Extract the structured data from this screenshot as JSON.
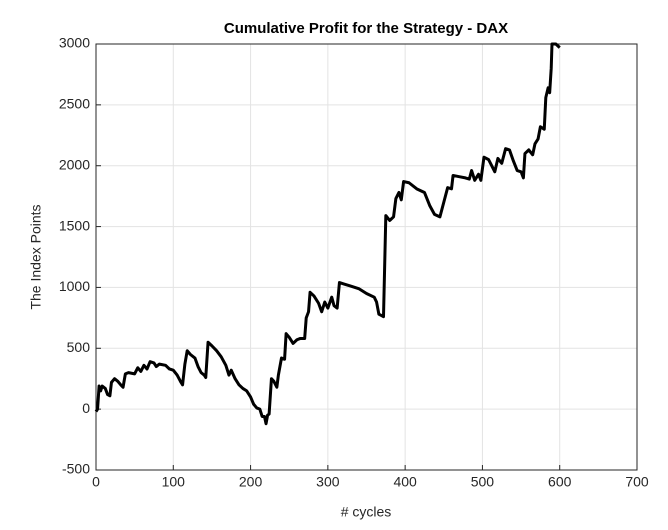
{
  "chart_data": {
    "type": "line",
    "title": "Cumulative Profit for the Strategy - DAX",
    "x_label": "# cycles",
    "y_label": "The Index Points",
    "x": [
      0,
      2,
      4,
      6,
      8,
      12,
      15,
      18,
      20,
      24,
      28,
      32,
      35,
      38,
      42,
      50,
      54,
      58,
      62,
      66,
      70,
      75,
      78,
      82,
      90,
      95,
      100,
      105,
      110,
      112,
      115,
      118,
      122,
      128,
      132,
      136,
      140,
      142,
      145,
      150,
      156,
      162,
      168,
      172,
      175,
      180,
      185,
      190,
      195,
      200,
      204,
      208,
      212,
      215,
      218,
      220,
      222,
      224,
      227,
      230,
      234,
      236,
      240,
      244,
      246,
      250,
      255,
      260,
      264,
      270,
      272,
      275,
      277,
      282,
      288,
      292,
      296,
      300,
      305,
      308,
      312,
      315,
      320,
      330,
      340,
      350,
      360,
      363,
      366,
      372,
      375,
      380,
      385,
      388,
      392,
      395,
      398,
      405,
      415,
      425,
      432,
      438,
      445,
      450,
      455,
      460,
      462,
      470,
      478,
      483,
      486,
      490,
      495,
      498,
      502,
      508,
      512,
      516,
      520,
      525,
      530,
      535,
      540,
      545,
      550,
      553,
      555,
      560,
      565,
      568,
      572,
      575,
      580,
      582,
      585,
      587,
      589,
      590,
      595,
      600
    ],
    "values": [
      -20,
      0,
      190,
      150,
      190,
      170,
      120,
      110,
      220,
      250,
      230,
      200,
      180,
      290,
      300,
      290,
      340,
      310,
      360,
      330,
      390,
      380,
      350,
      370,
      360,
      330,
      320,
      280,
      220,
      200,
      370,
      480,
      450,
      420,
      350,
      300,
      280,
      260,
      550,
      520,
      480,
      430,
      360,
      280,
      320,
      250,
      200,
      170,
      150,
      100,
      40,
      10,
      0,
      -60,
      -60,
      -120,
      -50,
      -40,
      250,
      230,
      180,
      280,
      420,
      410,
      620,
      590,
      540,
      570,
      580,
      580,
      750,
      800,
      960,
      930,
      870,
      800,
      880,
      830,
      920,
      850,
      830,
      1040,
      1030,
      1010,
      990,
      950,
      920,
      880,
      780,
      760,
      1590,
      1550,
      1580,
      1730,
      1780,
      1720,
      1870,
      1860,
      1810,
      1780,
      1670,
      1600,
      1580,
      1700,
      1820,
      1810,
      1920,
      1910,
      1900,
      1890,
      1960,
      1880,
      1930,
      1880,
      2070,
      2050,
      2000,
      1950,
      2060,
      2020,
      2140,
      2130,
      2040,
      1960,
      1950,
      1900,
      2100,
      2130,
      2090,
      2180,
      2220,
      2320,
      2300,
      2560,
      2640,
      2600,
      2800,
      3000,
      3000,
      2970
    ],
    "color": "#000000",
    "xlim": [
      0,
      700
    ],
    "xticks": [
      0,
      100,
      200,
      300,
      400,
      500,
      600,
      700
    ],
    "ylim": [
      -500,
      3000
    ],
    "yticks": [
      -500,
      0,
      500,
      1000,
      1500,
      2000,
      2500,
      3000
    ],
    "grid": true
  }
}
